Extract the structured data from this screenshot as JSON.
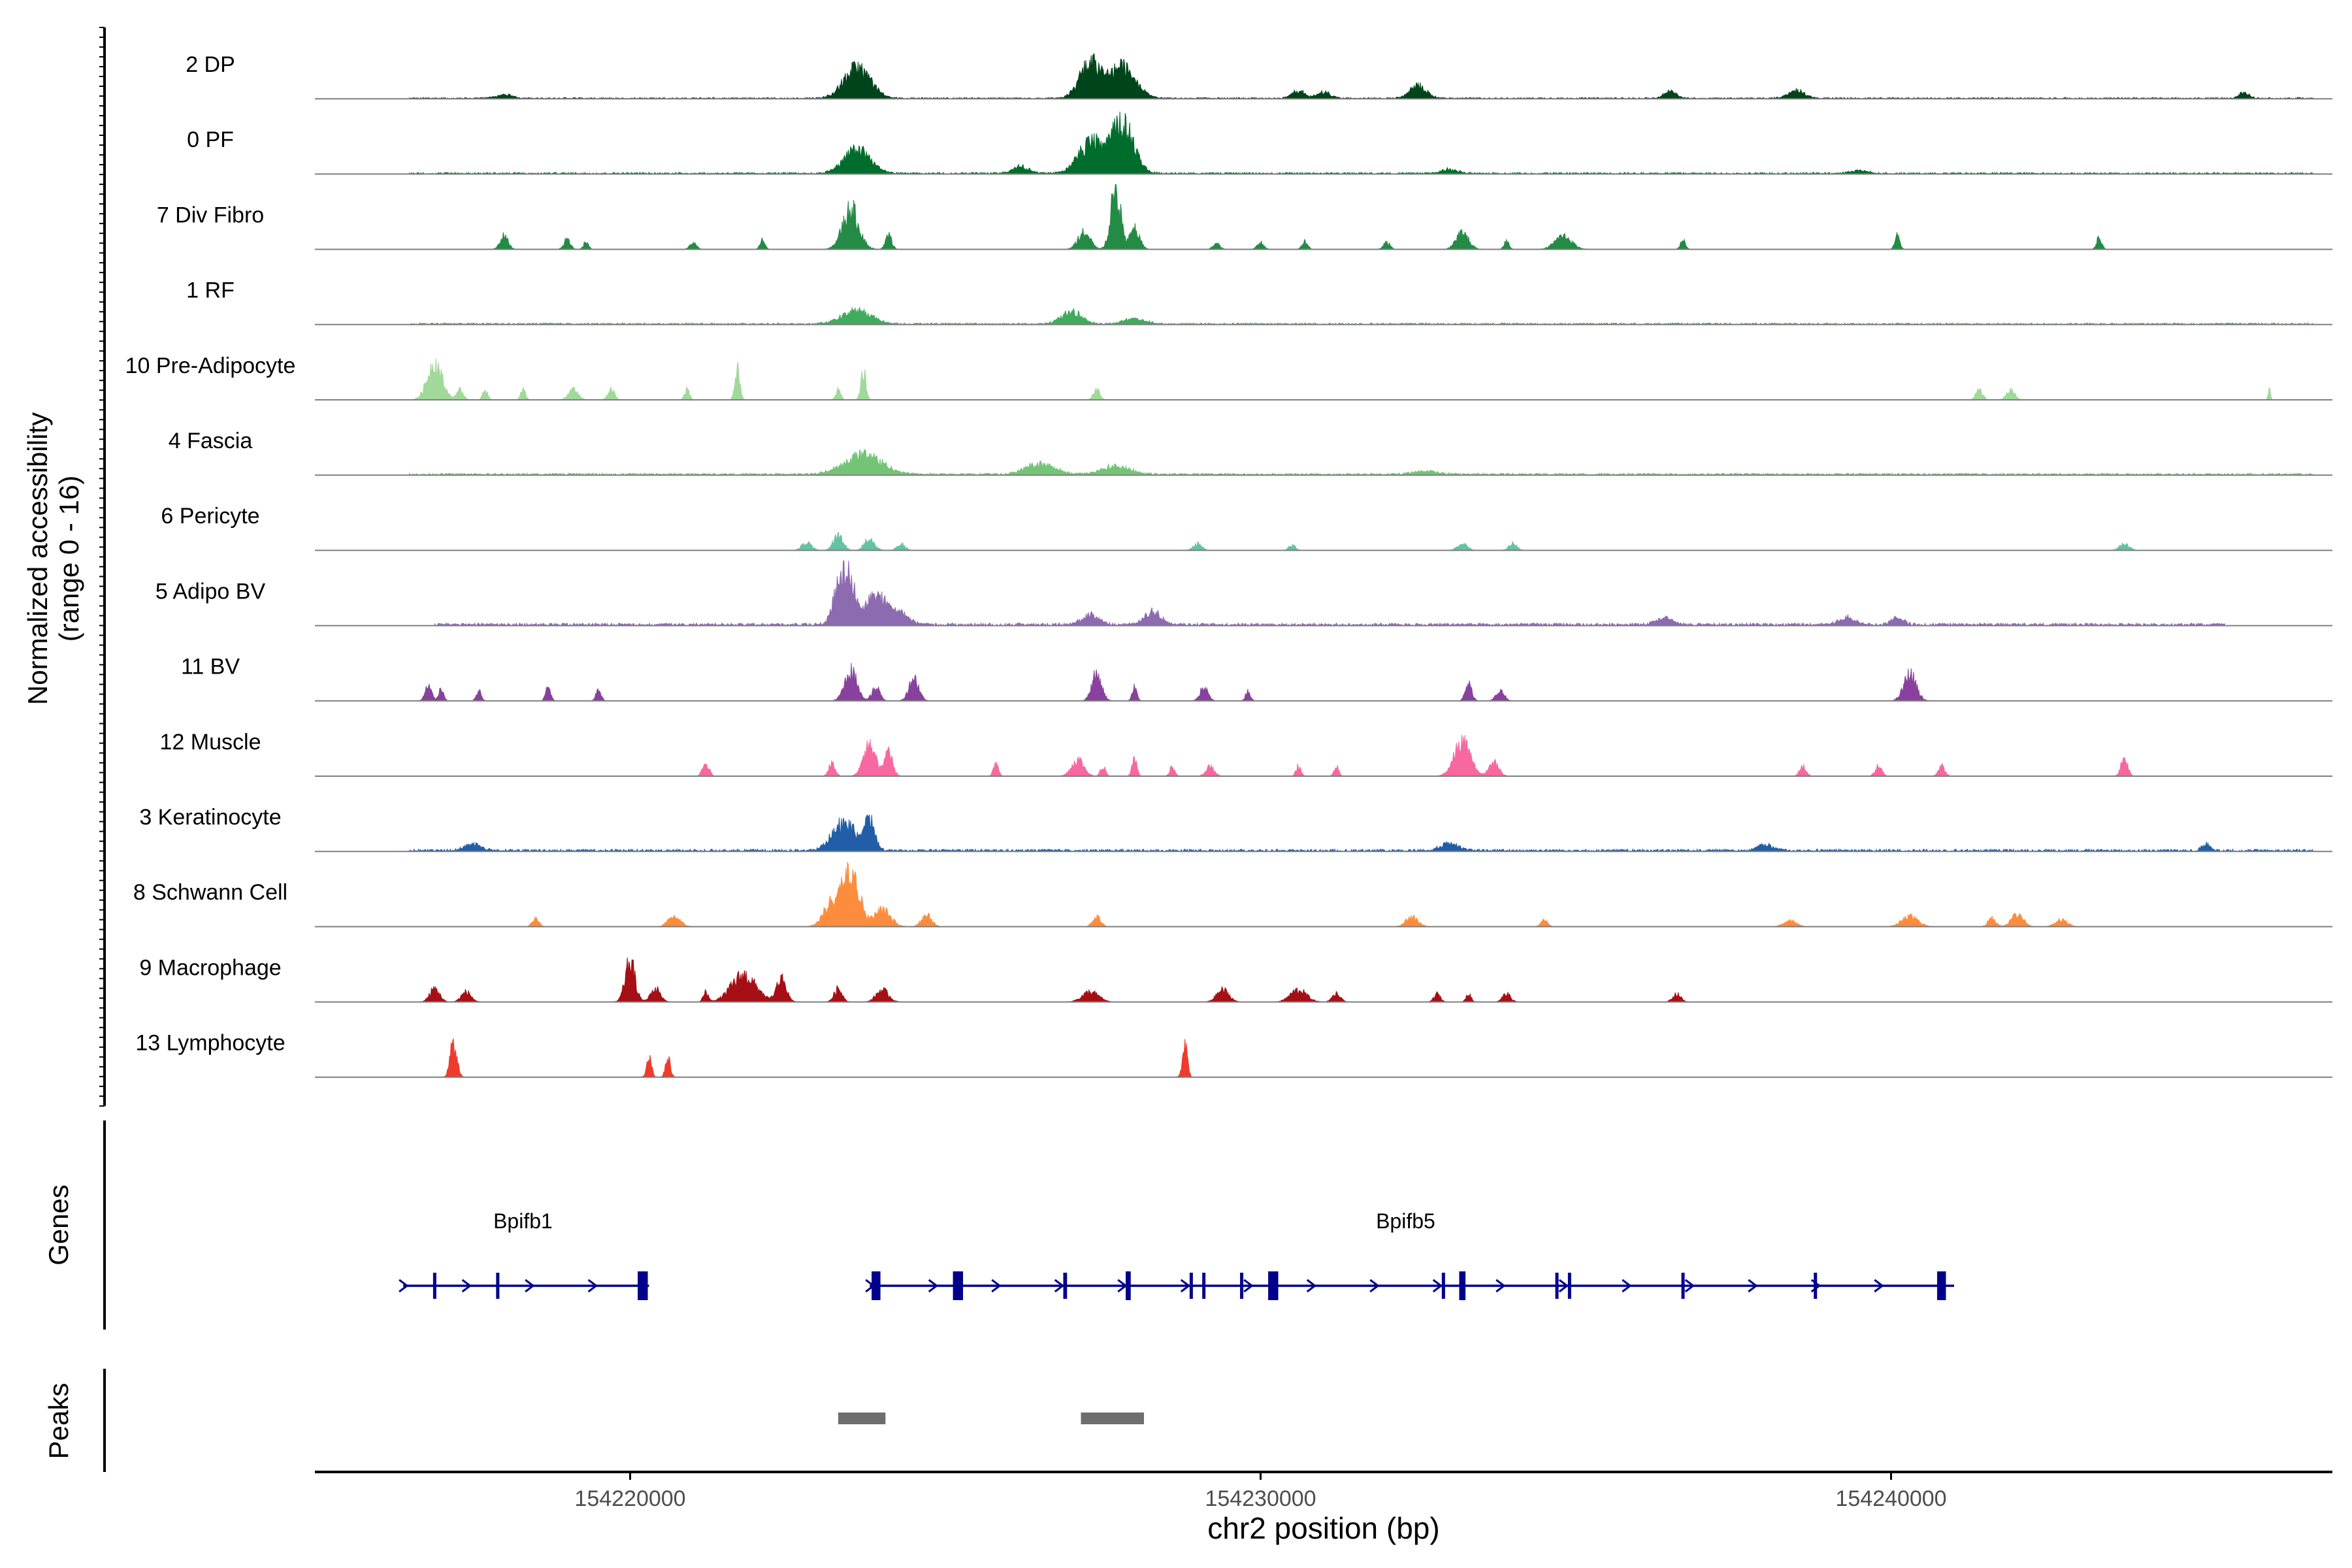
{
  "chart_data": {
    "type": "area",
    "y_axis_title_line1": "Normalized accessibility",
    "y_axis_title_line2": "(range 0 - 16)",
    "y_range": [
      0,
      16
    ],
    "x_axis_title": "chr2 position (bp)",
    "x_range": [
      154215000,
      154247000
    ],
    "x_ticks": [
      {
        "value": 154220000,
        "label": "154220000"
      },
      {
        "value": 154230000,
        "label": "154230000"
      },
      {
        "value": 154240000,
        "label": "154240000"
      }
    ],
    "tracks": [
      {
        "name": "2 DP",
        "color": "#00441b",
        "peaks": [
          [
            154223600,
            0.45,
            320
          ],
          [
            154227300,
            0.5,
            260
          ],
          [
            154227800,
            0.45,
            320
          ],
          [
            154232500,
            0.18,
            200
          ],
          [
            154230600,
            0.12,
            150
          ],
          [
            154236500,
            0.1,
            150
          ],
          [
            154238500,
            0.12,
            200
          ],
          [
            154231000,
            0.1,
            150
          ],
          [
            154245600,
            0.08,
            120
          ],
          [
            154218000,
            0.05,
            200
          ]
        ],
        "baseline": 0.02,
        "start": 154216500,
        "end": 154246700
      },
      {
        "name": "0 PF",
        "color": "#006d2c",
        "peaks": [
          [
            154223600,
            0.35,
            320
          ],
          [
            154227300,
            0.45,
            300
          ],
          [
            154227800,
            0.75,
            280
          ],
          [
            154226200,
            0.1,
            200
          ],
          [
            154233000,
            0.06,
            200
          ],
          [
            154239500,
            0.05,
            200
          ]
        ],
        "baseline": 0.025,
        "start": 154216500,
        "end": 154246700
      },
      {
        "name": "7 Div Fibro",
        "color": "#238b45",
        "peaks": [
          [
            154218000,
            0.2,
            100
          ],
          [
            154219000,
            0.15,
            80
          ],
          [
            154219300,
            0.12,
            60
          ],
          [
            154221000,
            0.1,
            80
          ],
          [
            154222100,
            0.14,
            60
          ],
          [
            154223500,
            0.6,
            200
          ],
          [
            154224100,
            0.2,
            80
          ],
          [
            154227200,
            0.25,
            150
          ],
          [
            154227700,
            0.9,
            120
          ],
          [
            154228000,
            0.3,
            120
          ],
          [
            154229300,
            0.1,
            80
          ],
          [
            154230000,
            0.1,
            80
          ],
          [
            154230700,
            0.12,
            70
          ],
          [
            154232000,
            0.1,
            80
          ],
          [
            154233200,
            0.25,
            150
          ],
          [
            154233900,
            0.12,
            60
          ],
          [
            154234800,
            0.2,
            200
          ],
          [
            154236700,
            0.14,
            60
          ],
          [
            154240100,
            0.2,
            60
          ],
          [
            154243300,
            0.18,
            60
          ]
        ],
        "baseline": 0.0,
        "start": 154216500,
        "end": 154246700
      },
      {
        "name": "1 RF",
        "color": "#41ab5d",
        "peaks": [
          [
            154223600,
            0.2,
            350
          ],
          [
            154227000,
            0.18,
            250
          ],
          [
            154228000,
            0.08,
            250
          ]
        ],
        "baseline": 0.025,
        "start": 154216500,
        "end": 154246700
      },
      {
        "name": "10 Pre-Adipocyte",
        "color": "#a1d99b",
        "peaks": [
          [
            154216900,
            0.55,
            180
          ],
          [
            154217300,
            0.15,
            80
          ],
          [
            154217700,
            0.15,
            60
          ],
          [
            154218300,
            0.15,
            60
          ],
          [
            154219100,
            0.15,
            120
          ],
          [
            154219700,
            0.15,
            80
          ],
          [
            154220900,
            0.15,
            60
          ],
          [
            154221700,
            0.45,
            60
          ],
          [
            154223300,
            0.15,
            60
          ],
          [
            154223700,
            0.45,
            60
          ],
          [
            154227400,
            0.15,
            80
          ],
          [
            154241400,
            0.15,
            80
          ],
          [
            154241900,
            0.15,
            100
          ],
          [
            154246000,
            0.15,
            30
          ]
        ],
        "baseline": 0.0,
        "start": 154216500,
        "end": 154246700
      },
      {
        "name": "4 Fascia",
        "color": "#74c476",
        "peaks": [
          [
            154223700,
            0.3,
            450
          ],
          [
            154226500,
            0.16,
            350
          ],
          [
            154227700,
            0.12,
            350
          ],
          [
            154232600,
            0.05,
            300
          ]
        ],
        "baseline": 0.03,
        "start": 154216500,
        "end": 154246700
      },
      {
        "name": "6 Pericyte",
        "color": "#66c2a4",
        "peaks": [
          [
            154222800,
            0.12,
            120
          ],
          [
            154223300,
            0.22,
            120
          ],
          [
            154223800,
            0.18,
            120
          ],
          [
            154224300,
            0.1,
            100
          ],
          [
            154229000,
            0.1,
            100
          ],
          [
            154230500,
            0.08,
            80
          ],
          [
            154233200,
            0.1,
            120
          ],
          [
            154234000,
            0.1,
            100
          ],
          [
            154243700,
            0.1,
            120
          ]
        ],
        "baseline": 0.0,
        "start": 154216500,
        "end": 154246700
      },
      {
        "name": "5 Adipo BV",
        "color": "#8c6bb1",
        "peaks": [
          [
            154223400,
            0.9,
            200
          ],
          [
            154223900,
            0.4,
            300
          ],
          [
            154224300,
            0.15,
            200
          ],
          [
            154227300,
            0.15,
            200
          ],
          [
            154228300,
            0.2,
            200
          ],
          [
            154236400,
            0.1,
            200
          ],
          [
            154239300,
            0.1,
            200
          ],
          [
            154240100,
            0.1,
            150
          ]
        ],
        "baseline": 0.04,
        "start": 154216900,
        "end": 154245300
      },
      {
        "name": "11 BV",
        "color": "#88419d",
        "peaks": [
          [
            154216800,
            0.22,
            80
          ],
          [
            154217000,
            0.18,
            60
          ],
          [
            154217600,
            0.15,
            60
          ],
          [
            154218700,
            0.22,
            60
          ],
          [
            154219500,
            0.18,
            60
          ],
          [
            154223500,
            0.45,
            150
          ],
          [
            154223900,
            0.2,
            100
          ],
          [
            154224500,
            0.35,
            120
          ],
          [
            154227400,
            0.4,
            120
          ],
          [
            154228000,
            0.2,
            60
          ],
          [
            154229100,
            0.2,
            100
          ],
          [
            154229800,
            0.15,
            60
          ],
          [
            154233300,
            0.25,
            80
          ],
          [
            154233800,
            0.15,
            100
          ],
          [
            154240300,
            0.4,
            150
          ]
        ],
        "baseline": 0.0,
        "start": 154216500,
        "end": 154246700
      },
      {
        "name": "12 Muscle",
        "color": "#f768a1",
        "peaks": [
          [
            154221200,
            0.18,
            80
          ],
          [
            154223200,
            0.18,
            80
          ],
          [
            154223800,
            0.45,
            150
          ],
          [
            154224100,
            0.35,
            100
          ],
          [
            154225800,
            0.2,
            60
          ],
          [
            154227100,
            0.25,
            150
          ],
          [
            154227500,
            0.15,
            60
          ],
          [
            154228000,
            0.25,
            60
          ],
          [
            154228600,
            0.15,
            60
          ],
          [
            154229200,
            0.15,
            100
          ],
          [
            154230600,
            0.15,
            60
          ],
          [
            154231200,
            0.15,
            60
          ],
          [
            154233200,
            0.5,
            200
          ],
          [
            154233700,
            0.2,
            120
          ],
          [
            154238600,
            0.15,
            80
          ],
          [
            154239800,
            0.15,
            80
          ],
          [
            154240800,
            0.15,
            80
          ],
          [
            154243700,
            0.28,
            80
          ]
        ],
        "baseline": 0.0,
        "start": 154216500,
        "end": 154246700
      },
      {
        "name": "3 Keratinocyte",
        "color": "#225ea8",
        "peaks": [
          [
            154223400,
            0.4,
            300
          ],
          [
            154223800,
            0.45,
            120
          ],
          [
            154217500,
            0.1,
            200
          ],
          [
            154233000,
            0.12,
            200
          ],
          [
            154238000,
            0.08,
            200
          ],
          [
            154245000,
            0.1,
            100
          ]
        ],
        "baseline": 0.035,
        "start": 154216500,
        "end": 154246700
      },
      {
        "name": "8 Schwann Cell",
        "color": "#fd8d3c",
        "peaks": [
          [
            154218500,
            0.12,
            80
          ],
          [
            154220700,
            0.15,
            150
          ],
          [
            154223500,
            0.9,
            200
          ],
          [
            154223200,
            0.35,
            200
          ],
          [
            154224000,
            0.25,
            200
          ],
          [
            154224700,
            0.2,
            120
          ],
          [
            154227400,
            0.15,
            100
          ],
          [
            154232400,
            0.15,
            150
          ],
          [
            154234500,
            0.1,
            80
          ],
          [
            154238400,
            0.1,
            150
          ],
          [
            154240300,
            0.15,
            200
          ],
          [
            154241600,
            0.12,
            100
          ],
          [
            154242000,
            0.18,
            150
          ],
          [
            154242700,
            0.1,
            150
          ]
        ],
        "baseline": 0.0,
        "start": 154216500,
        "end": 154246700
      },
      {
        "name": "9 Macrophage",
        "color": "#a50f15",
        "peaks": [
          [
            154216900,
            0.2,
            120
          ],
          [
            154217400,
            0.15,
            120
          ],
          [
            154220000,
            0.6,
            120
          ],
          [
            154220400,
            0.2,
            120
          ],
          [
            154221200,
            0.15,
            60
          ],
          [
            154221800,
            0.4,
            300
          ],
          [
            154222400,
            0.35,
            120
          ],
          [
            154223300,
            0.2,
            100
          ],
          [
            154224000,
            0.18,
            150
          ],
          [
            154227300,
            0.15,
            200
          ],
          [
            154229400,
            0.18,
            150
          ],
          [
            154230600,
            0.18,
            200
          ],
          [
            154231200,
            0.12,
            100
          ],
          [
            154232800,
            0.12,
            80
          ],
          [
            154233300,
            0.12,
            60
          ],
          [
            154233900,
            0.12,
            100
          ],
          [
            154236600,
            0.12,
            100
          ]
        ],
        "baseline": 0.0,
        "start": 154216500,
        "end": 154246700
      },
      {
        "name": "13 Lymphocyte",
        "color": "#ef3b2c",
        "peaks": [
          [
            154217200,
            0.55,
            80
          ],
          [
            154220300,
            0.3,
            60
          ],
          [
            154220600,
            0.3,
            60
          ],
          [
            154228800,
            0.55,
            60
          ]
        ],
        "baseline": 0.0,
        "start": 154216500,
        "end": 154246700
      }
    ],
    "genes_track_label": "Genes",
    "genes": [
      {
        "name": "Bpifb1",
        "start": 154216400,
        "end": 154220300,
        "strand": "+",
        "exons": [
          [
            154216900,
            30
          ],
          [
            154217900,
            30
          ],
          [
            154220200,
            160
          ]
        ],
        "label_pos": 154218300
      },
      {
        "name": "Bpifb5",
        "start": 154223800,
        "end": 154241000,
        "strand": "+",
        "exons": [
          [
            154223900,
            140
          ],
          [
            154225200,
            160
          ],
          [
            154226900,
            60
          ],
          [
            154227900,
            80
          ],
          [
            154228900,
            40
          ],
          [
            154229100,
            40
          ],
          [
            154229700,
            40
          ],
          [
            154230200,
            160
          ],
          [
            154232900,
            30
          ],
          [
            154233200,
            100
          ],
          [
            154234700,
            40
          ],
          [
            154234900,
            40
          ],
          [
            154236700,
            40
          ],
          [
            154238800,
            40
          ],
          [
            154240800,
            140
          ]
        ],
        "label_pos": 154232300
      }
    ],
    "peaks_track_label": "Peaks",
    "peak_regions": [
      [
        154223300,
        154224050
      ],
      [
        154227150,
        154228150
      ]
    ]
  }
}
